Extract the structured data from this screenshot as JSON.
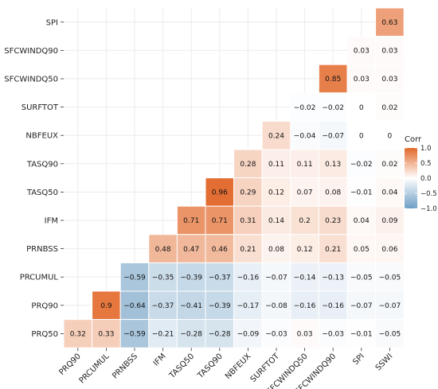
{
  "chart_data": {
    "type": "heatmap",
    "subtype": "lower-triangular correlation matrix",
    "x_labels": [
      "PRQ90",
      "PRCUMUL",
      "PRNBSS",
      "IFM",
      "TASQ50",
      "TASQ90",
      "NBFEUX",
      "SURFTOT",
      "SFCWINDQ50",
      "SFCWINDQ90",
      "SPI",
      "SSWI"
    ],
    "y_labels_top_to_bottom": [
      "SPI",
      "SFCWINDQ90",
      "SFCWINDQ50",
      "SURFTOT",
      "NBFEUX",
      "TASQ90",
      "TASQ50",
      "IFM",
      "PRNBSS",
      "PRCUMUL",
      "PRQ90",
      "PRQ50"
    ],
    "rows": [
      {
        "label": "SPI",
        "values": [
          null,
          null,
          null,
          null,
          null,
          null,
          null,
          null,
          null,
          null,
          null,
          0.63
        ]
      },
      {
        "label": "SFCWINDQ90",
        "values": [
          null,
          null,
          null,
          null,
          null,
          null,
          null,
          null,
          null,
          null,
          0.03,
          0.03
        ]
      },
      {
        "label": "SFCWINDQ50",
        "values": [
          null,
          null,
          null,
          null,
          null,
          null,
          null,
          null,
          null,
          0.85,
          0.03,
          0.03
        ]
      },
      {
        "label": "SURFTOT",
        "values": [
          null,
          null,
          null,
          null,
          null,
          null,
          null,
          null,
          -0.02,
          -0.02,
          0,
          0.02
        ]
      },
      {
        "label": "NBFEUX",
        "values": [
          null,
          null,
          null,
          null,
          null,
          null,
          null,
          0.24,
          -0.04,
          -0.07,
          0,
          0
        ]
      },
      {
        "label": "TASQ90",
        "values": [
          null,
          null,
          null,
          null,
          null,
          null,
          0.28,
          0.11,
          0.11,
          0.13,
          -0.02,
          0.02
        ]
      },
      {
        "label": "TASQ50",
        "values": [
          null,
          null,
          null,
          null,
          null,
          0.96,
          0.29,
          0.12,
          0.07,
          0.08,
          -0.01,
          0.04
        ]
      },
      {
        "label": "IFM",
        "values": [
          null,
          null,
          null,
          null,
          0.71,
          0.71,
          0.31,
          0.14,
          0.2,
          0.23,
          0.04,
          0.09
        ]
      },
      {
        "label": "PRNBSS",
        "values": [
          null,
          null,
          null,
          0.48,
          0.47,
          0.46,
          0.21,
          0.08,
          0.12,
          0.21,
          0.05,
          0.06
        ]
      },
      {
        "label": "PRCUMUL",
        "values": [
          null,
          null,
          -0.59,
          -0.35,
          -0.39,
          -0.37,
          -0.16,
          -0.07,
          -0.14,
          -0.13,
          -0.05,
          -0.05
        ]
      },
      {
        "label": "PRQ90",
        "values": [
          null,
          0.9,
          -0.64,
          -0.37,
          -0.41,
          -0.39,
          -0.17,
          -0.08,
          -0.16,
          -0.16,
          -0.07,
          -0.07
        ]
      },
      {
        "label": "PRQ50",
        "values": [
          0.32,
          0.33,
          -0.59,
          -0.21,
          -0.28,
          -0.28,
          -0.09,
          -0.03,
          0.03,
          -0.03,
          -0.01,
          -0.05
        ]
      }
    ],
    "legend": {
      "title": "Corr",
      "ticks": [
        "1.0",
        "0.5",
        "0.0",
        "−0.5",
        "−1.0"
      ],
      "tick_values": [
        1.0,
        0.5,
        0.0,
        -0.5,
        -1.0
      ],
      "placement": "right",
      "range": [
        -1,
        1
      ]
    },
    "colors": {
      "low": "#6d9ec4",
      "mid": "#ffffff",
      "high": "#e2682a",
      "grid": "#ebebeb"
    },
    "grid": true,
    "x_label_rotation_deg": -45
  }
}
